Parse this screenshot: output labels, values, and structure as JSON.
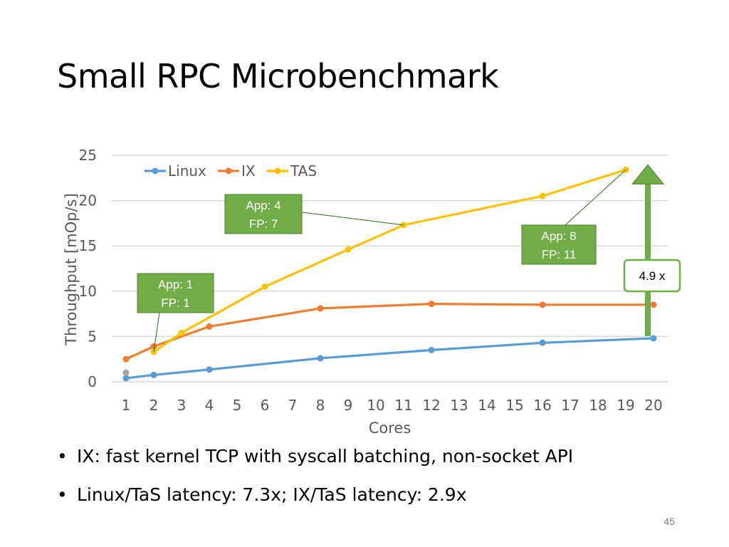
{
  "slide": {
    "title": "Small RPC Microbenchmark",
    "bullets": [
      "IX: fast kernel TCP with syscall batching, non-socket API",
      "Linux/TaS latency: 7.3x; IX/TaS latency: 2.9x"
    ],
    "page_number": "45"
  },
  "chart_data": {
    "type": "line",
    "xlabel": "Cores",
    "ylabel": "Throughput [mOp/s]",
    "x_ticks": [
      "1",
      "2",
      "3",
      "4",
      "5",
      "6",
      "7",
      "8",
      "9",
      "10",
      "11",
      "12",
      "13",
      "14",
      "15",
      "16",
      "17",
      "18",
      "19",
      "20"
    ],
    "y_ticks": [
      "0",
      "5",
      "10",
      "15",
      "20",
      "25"
    ],
    "ylim": [
      0,
      25
    ],
    "xlim": [
      1,
      20
    ],
    "grid": "horizontal",
    "legend": "top-left",
    "series": [
      {
        "name": "Linux",
        "color": "#5b9bd5",
        "x": [
          1,
          2,
          4,
          8,
          12,
          16,
          20
        ],
        "y": [
          0.4,
          0.75,
          1.35,
          2.6,
          3.5,
          4.3,
          4.8
        ]
      },
      {
        "name": "IX",
        "color": "#ed7d31",
        "x": [
          1,
          2,
          4,
          8,
          12,
          16,
          20
        ],
        "y": [
          2.5,
          3.9,
          6.1,
          8.1,
          8.6,
          8.5,
          8.5
        ]
      },
      {
        "name": "TAS",
        "color": "#ffc000",
        "x": [
          2,
          3,
          6,
          9,
          11,
          16,
          19
        ],
        "y": [
          3.3,
          5.4,
          10.5,
          14.6,
          17.3,
          20.5,
          23.4
        ]
      }
    ],
    "extra_points": [
      {
        "x": 1,
        "y": 1.0,
        "color": "#a5a5a5"
      }
    ],
    "annotations": [
      {
        "lines": [
          "App: 1",
          "FP: 1"
        ],
        "target": {
          "x": 2,
          "y": 3.3
        }
      },
      {
        "lines": [
          "App: 4",
          "FP: 7"
        ],
        "target": {
          "x": 11,
          "y": 17.3
        }
      },
      {
        "lines": [
          "App: 8",
          "FP: 11"
        ],
        "target": {
          "x": 19,
          "y": 23.4
        }
      }
    ],
    "speedup": {
      "label": "4.9 x",
      "from_y": 4.8,
      "to_y": 23.4,
      "color": "#70ad47"
    }
  }
}
